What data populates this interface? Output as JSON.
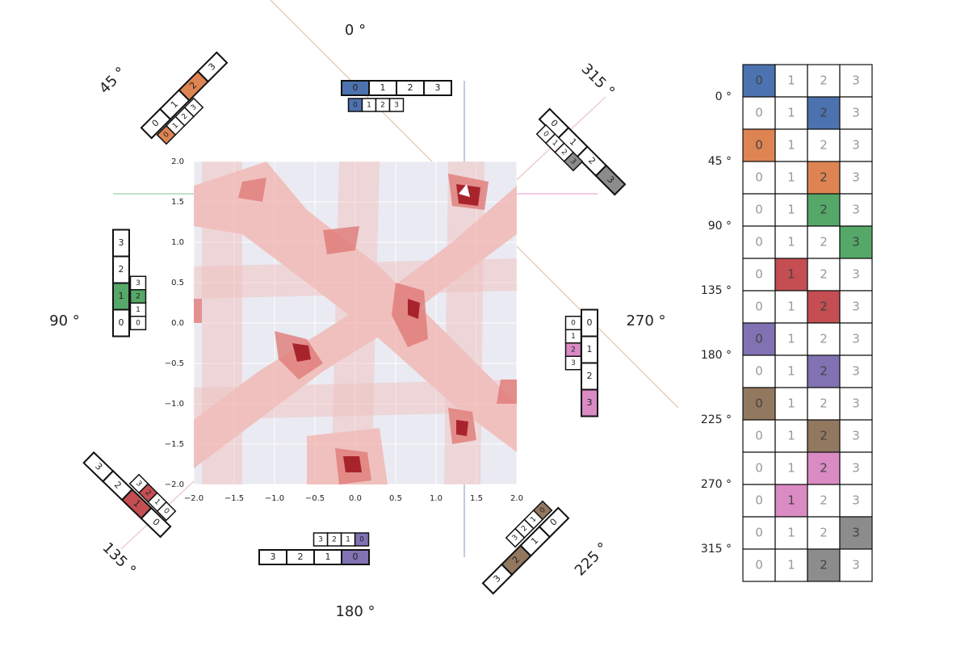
{
  "direction_labels": [
    "0 °",
    "45 °",
    "90 °",
    "135 °",
    "180 °",
    "225 °",
    "270 °",
    "315 °"
  ],
  "plot": {
    "xticks": [
      {
        "value": -2,
        "label": "−2.0"
      },
      {
        "value": -1.5,
        "label": "−1.5"
      },
      {
        "value": -1,
        "label": "−1.0"
      },
      {
        "value": -0.5,
        "label": "−0.5"
      },
      {
        "value": 0,
        "label": "0.0"
      },
      {
        "value": 0.5,
        "label": "0.5"
      },
      {
        "value": 1,
        "label": "1.0"
      },
      {
        "value": 1.5,
        "label": "1.5"
      },
      {
        "value": 2,
        "label": "2.0"
      }
    ],
    "yticks": [
      {
        "value": -2,
        "label": "−2.0"
      },
      {
        "value": -1.5,
        "label": "−1.5"
      },
      {
        "value": -1,
        "label": "−1.0"
      },
      {
        "value": -0.5,
        "label": "−0.5"
      },
      {
        "value": 0,
        "label": "0.0"
      },
      {
        "value": 0.5,
        "label": "0.5"
      },
      {
        "value": 1,
        "label": "1.0"
      },
      {
        "value": 1.5,
        "label": "1.5"
      },
      {
        "value": 2,
        "label": "2.0"
      }
    ]
  },
  "strips": [
    {
      "cells": [
        "0",
        "1",
        "2",
        "3"
      ],
      "highlight": 0,
      "color": "#4c72b0"
    },
    {
      "cells": [
        "0",
        "1",
        "2",
        "3"
      ],
      "highlight": 0,
      "color": "#4c72b0"
    },
    {
      "cells": [
        "0",
        "1",
        "2",
        "3"
      ],
      "highlight": 2,
      "color": "#dd8452"
    },
    {
      "cells": [
        "0",
        "1",
        "2",
        "3"
      ],
      "highlight": 0,
      "color": "#dd8452"
    },
    {
      "cells": [
        "0",
        "1",
        "2",
        "3"
      ],
      "highlight": 1,
      "color": "#55a868"
    },
    {
      "cells": [
        "0",
        "1",
        "2",
        "3"
      ],
      "highlight": 2,
      "color": "#55a868"
    },
    {
      "cells": [
        "0",
        "1",
        "2",
        "3"
      ],
      "highlight": 1,
      "color": "#c44e52"
    },
    {
      "cells": [
        "0",
        "1",
        "2",
        "3"
      ],
      "highlight": 2,
      "color": "#c44e52"
    },
    {
      "cells": [
        "0",
        "1",
        "2",
        "3"
      ],
      "highlight": 0,
      "color": "#8172b3"
    },
    {
      "cells": [
        "0",
        "1",
        "2",
        "3"
      ],
      "highlight": 0,
      "color": "#8172b3"
    },
    {
      "cells": [
        "0",
        "1",
        "2",
        "3"
      ],
      "highlight": 2,
      "color": "#937860"
    },
    {
      "cells": [
        "0",
        "1",
        "2",
        "3"
      ],
      "highlight": 0,
      "color": "#937860"
    },
    {
      "cells": [
        "0",
        "1",
        "2",
        "3"
      ],
      "highlight": 3,
      "color": "#da8bc3"
    },
    {
      "cells": [
        "0",
        "1",
        "2",
        "3"
      ],
      "highlight": 2,
      "color": "#da8bc3"
    },
    {
      "cells": [
        "0",
        "1",
        "2",
        "3"
      ],
      "highlight": 3,
      "color": "#8c8c8c"
    },
    {
      "cells": [
        "0",
        "1",
        "2",
        "3"
      ],
      "highlight": 3,
      "color": "#8c8c8c"
    }
  ],
  "table": {
    "row_labels": [
      "0 °",
      "45 °",
      "90 °",
      "135 °",
      "180 °",
      "225 °",
      "270 °",
      "315 °"
    ],
    "rows": [
      {
        "cells": [
          "0",
          "1",
          "2",
          "3"
        ],
        "highlight": 0,
        "color": "#4c72b0"
      },
      {
        "cells": [
          "0",
          "1",
          "2",
          "3"
        ],
        "highlight": 2,
        "color": "#4c72b0"
      },
      {
        "cells": [
          "0",
          "1",
          "2",
          "3"
        ],
        "highlight": 0,
        "color": "#dd8452"
      },
      {
        "cells": [
          "0",
          "1",
          "2",
          "3"
        ],
        "highlight": 2,
        "color": "#dd8452"
      },
      {
        "cells": [
          "0",
          "1",
          "2",
          "3"
        ],
        "highlight": 2,
        "color": "#55a868"
      },
      {
        "cells": [
          "0",
          "1",
          "2",
          "3"
        ],
        "highlight": 3,
        "color": "#55a868"
      },
      {
        "cells": [
          "0",
          "1",
          "2",
          "3"
        ],
        "highlight": 1,
        "color": "#c44e52"
      },
      {
        "cells": [
          "0",
          "1",
          "2",
          "3"
        ],
        "highlight": 2,
        "color": "#c44e52"
      },
      {
        "cells": [
          "0",
          "1",
          "2",
          "3"
        ],
        "highlight": 0,
        "color": "#8172b3"
      },
      {
        "cells": [
          "0",
          "1",
          "2",
          "3"
        ],
        "highlight": 2,
        "color": "#8172b3"
      },
      {
        "cells": [
          "0",
          "1",
          "2",
          "3"
        ],
        "highlight": 0,
        "color": "#937860"
      },
      {
        "cells": [
          "0",
          "1",
          "2",
          "3"
        ],
        "highlight": 2,
        "color": "#937860"
      },
      {
        "cells": [
          "0",
          "1",
          "2",
          "3"
        ],
        "highlight": 2,
        "color": "#da8bc3"
      },
      {
        "cells": [
          "0",
          "1",
          "2",
          "3"
        ],
        "highlight": 1,
        "color": "#da8bc3"
      },
      {
        "cells": [
          "0",
          "1",
          "2",
          "3"
        ],
        "highlight": 3,
        "color": "#8c8c8c"
      },
      {
        "cells": [
          "0",
          "1",
          "2",
          "3"
        ],
        "highlight": 2,
        "color": "#8c8c8c"
      }
    ]
  }
}
